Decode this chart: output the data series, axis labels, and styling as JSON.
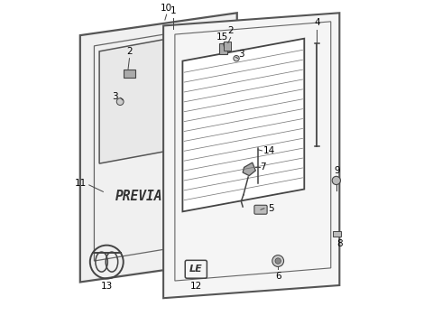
{
  "background_color": "#ffffff",
  "fig_width": 4.9,
  "fig_height": 3.6,
  "dpi": 100,
  "col": "#444444",
  "label_fontsize": 7.5
}
